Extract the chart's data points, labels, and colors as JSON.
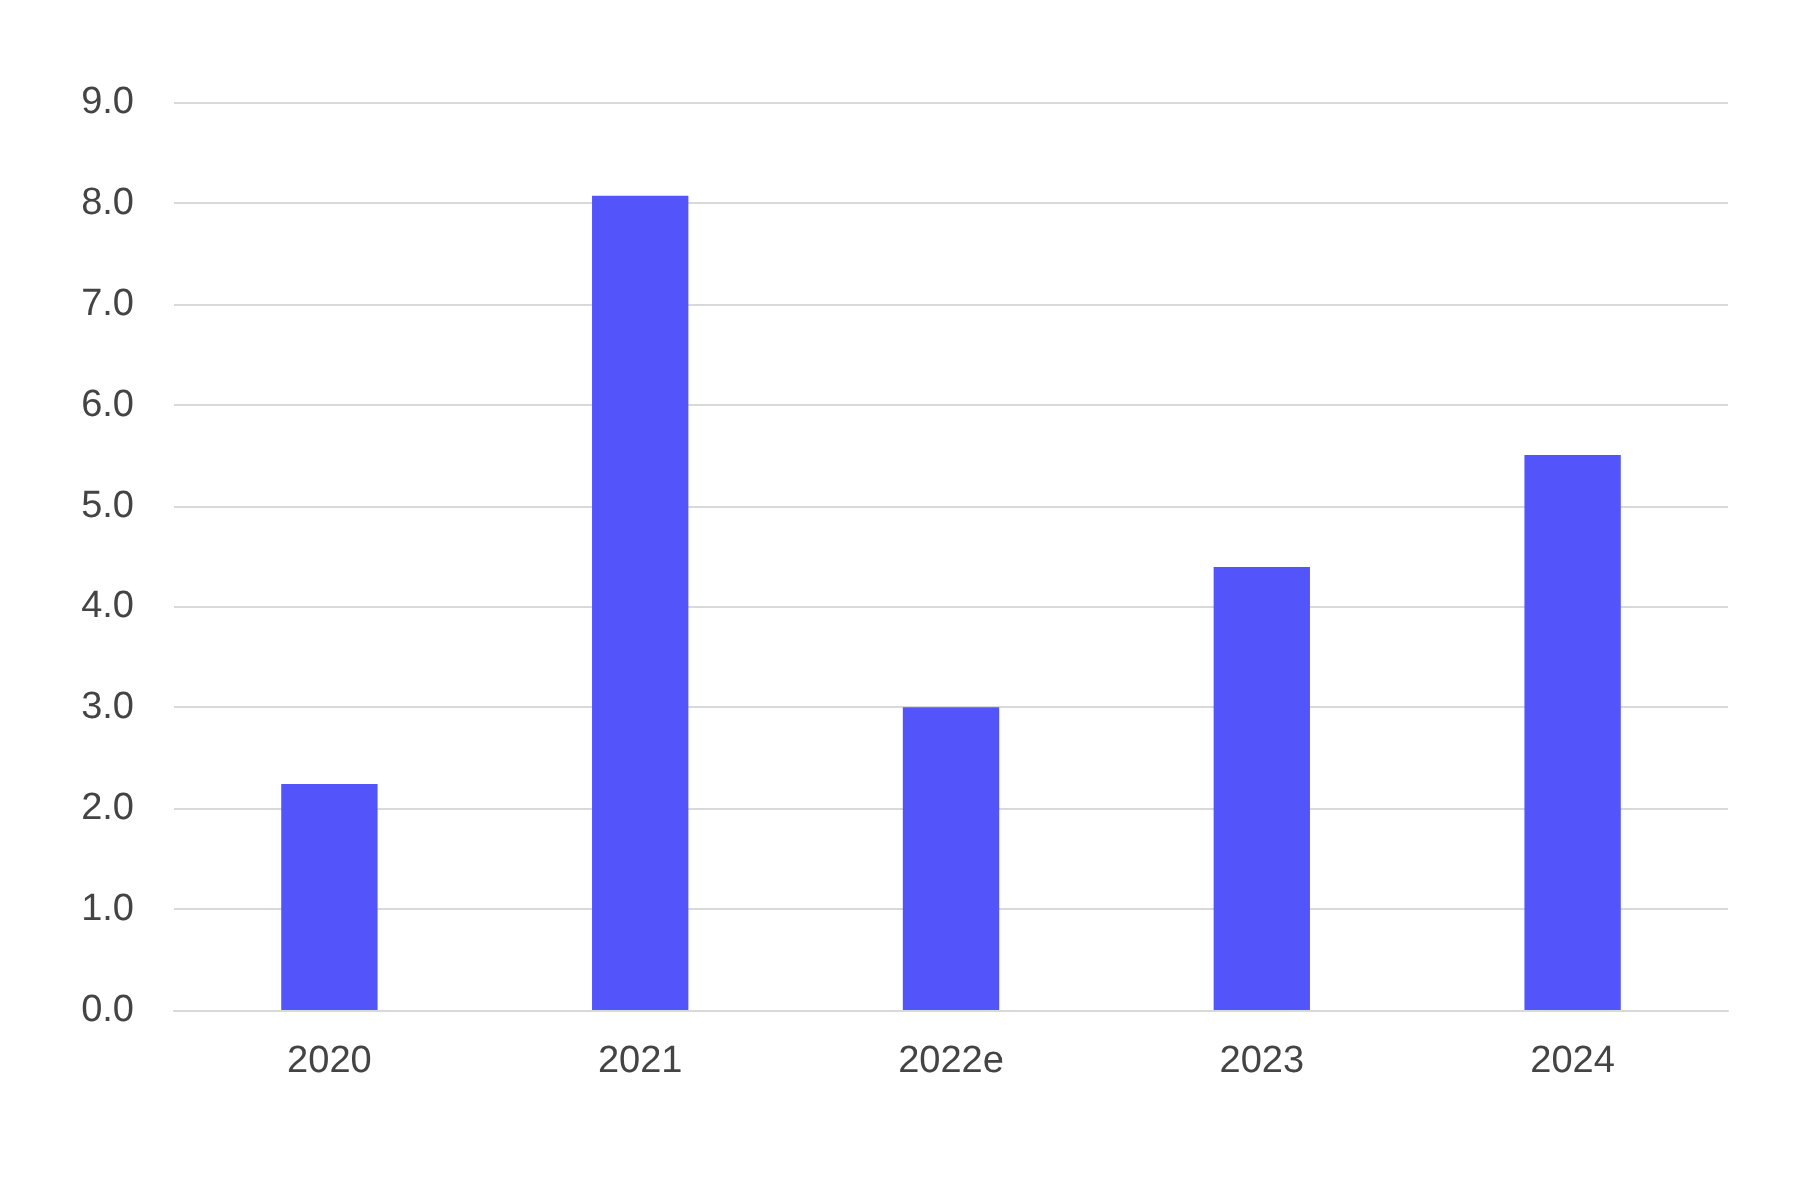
{
  "chart_data": {
    "type": "bar",
    "categories": [
      "2020",
      "2021",
      "2022e",
      "2023",
      "2024"
    ],
    "values": [
      2.24,
      8.07,
      3.0,
      4.39,
      5.5
    ],
    "color": "#5454fb",
    "ylim": [
      0,
      9
    ],
    "yticks": [
      {
        "value": 0,
        "label": "0.0"
      },
      {
        "value": 1,
        "label": "1.0"
      },
      {
        "value": 2,
        "label": "2.0"
      },
      {
        "value": 3,
        "label": "3.0"
      },
      {
        "value": 4,
        "label": "4.0"
      },
      {
        "value": 5,
        "label": "5.0"
      },
      {
        "value": 6,
        "label": "6.0"
      },
      {
        "value": 7,
        "label": "7.0"
      },
      {
        "value": 8,
        "label": "8.0"
      },
      {
        "value": 9,
        "label": "9.0"
      }
    ],
    "grid": "y"
  }
}
